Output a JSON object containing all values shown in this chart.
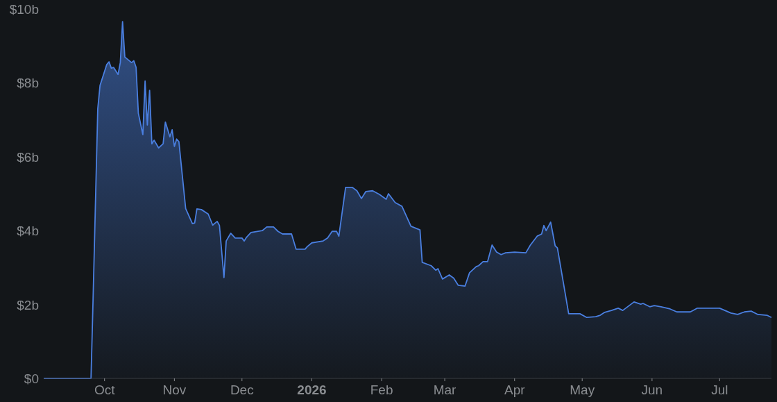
{
  "chart_data": {
    "type": "area",
    "x": [
      "2025-09-04",
      "2025-09-25",
      "2025-09-26",
      "2025-09-28",
      "2025-09-29",
      "2025-10-02",
      "2025-10-03",
      "2025-10-04",
      "2025-10-05",
      "2025-10-07",
      "2025-10-08",
      "2025-10-09",
      "2025-10-10",
      "2025-10-13",
      "2025-10-14",
      "2025-10-15",
      "2025-10-16",
      "2025-10-18",
      "2025-10-19",
      "2025-10-20",
      "2025-10-21",
      "2025-10-22",
      "2025-10-23",
      "2025-10-25",
      "2025-10-27",
      "2025-10-28",
      "2025-10-30",
      "2025-10-31",
      "2025-11-01",
      "2025-11-02",
      "2025-11-03",
      "2025-11-06",
      "2025-11-09",
      "2025-11-10",
      "2025-11-11",
      "2025-11-13",
      "2025-11-16",
      "2025-11-18",
      "2025-11-20",
      "2025-11-21",
      "2025-11-23",
      "2025-11-24",
      "2025-11-26",
      "2025-11-28",
      "2025-12-01",
      "2025-12-02",
      "2025-12-03",
      "2025-12-05",
      "2025-12-10",
      "2025-12-12",
      "2025-12-15",
      "2025-12-17",
      "2025-12-19",
      "2025-12-23",
      "2025-12-25",
      "2025-12-29",
      "2025-12-30",
      "2026-01-01",
      "2026-01-06",
      "2026-01-08",
      "2026-01-10",
      "2026-01-12",
      "2026-01-13",
      "2026-01-16",
      "2026-01-19",
      "2026-01-21",
      "2026-01-23",
      "2026-01-25",
      "2026-01-28",
      "2026-01-31",
      "2026-02-03",
      "2026-02-04",
      "2026-02-07",
      "2026-02-10",
      "2026-02-14",
      "2026-02-18",
      "2026-02-19",
      "2026-02-23",
      "2026-02-25",
      "2026-02-26",
      "2026-02-28",
      "2026-03-03",
      "2026-03-05",
      "2026-03-07",
      "2026-03-10",
      "2026-03-12",
      "2026-03-15",
      "2026-03-16",
      "2026-03-18",
      "2026-03-20",
      "2026-03-22",
      "2026-03-24",
      "2026-03-26",
      "2026-03-28",
      "2026-04-01",
      "2026-04-06",
      "2026-04-08",
      "2026-04-11",
      "2026-04-13",
      "2026-04-14",
      "2026-04-15",
      "2026-04-17",
      "2026-04-19",
      "2026-04-20",
      "2026-04-25",
      "2026-04-28",
      "2026-04-30",
      "2026-05-03",
      "2026-05-07",
      "2026-05-09",
      "2026-05-11",
      "2026-05-14",
      "2026-05-17",
      "2026-05-19",
      "2026-05-24",
      "2026-05-27",
      "2026-05-28",
      "2026-05-31",
      "2026-06-02",
      "2026-06-05",
      "2026-06-09",
      "2026-06-12",
      "2026-06-18",
      "2026-06-21",
      "2026-07-01",
      "2026-07-06",
      "2026-07-09",
      "2026-07-12",
      "2026-07-15",
      "2026-07-18",
      "2026-07-22",
      "2026-07-24"
    ],
    "series": [
      {
        "color": "#4a7fe0",
        "values": [
          0,
          0,
          2.35,
          7.3,
          7.93,
          8.5,
          8.57,
          8.4,
          8.42,
          8.23,
          8.55,
          9.66,
          8.7,
          8.55,
          8.6,
          8.42,
          7.18,
          6.6,
          8.05,
          6.86,
          7.8,
          6.35,
          6.45,
          6.24,
          6.35,
          6.94,
          6.54,
          6.73,
          6.28,
          6.48,
          6.41,
          4.6,
          4.19,
          4.21,
          4.59,
          4.57,
          4.45,
          4.15,
          4.25,
          4.14,
          2.73,
          3.72,
          3.93,
          3.8,
          3.8,
          3.72,
          3.82,
          3.95,
          4.0,
          4.1,
          4.1,
          3.98,
          3.91,
          3.91,
          3.5,
          3.5,
          3.57,
          3.67,
          3.72,
          3.8,
          3.98,
          3.98,
          3.85,
          5.17,
          5.17,
          5.08,
          4.87,
          5.06,
          5.08,
          4.98,
          4.85,
          5.0,
          4.76,
          4.66,
          4.12,
          4.02,
          3.14,
          3.05,
          2.93,
          2.97,
          2.69,
          2.8,
          2.71,
          2.52,
          2.5,
          2.86,
          3.03,
          3.05,
          3.16,
          3.16,
          3.61,
          3.42,
          3.35,
          3.4,
          3.42,
          3.4,
          3.61,
          3.85,
          3.91,
          4.14,
          4.0,
          4.23,
          3.59,
          3.53,
          1.75,
          1.75,
          1.75,
          1.65,
          1.67,
          1.71,
          1.79,
          1.84,
          1.9,
          1.84,
          2.07,
          2.01,
          2.03,
          1.94,
          1.97,
          1.94,
          1.88,
          1.8,
          1.8,
          1.9,
          1.9,
          1.77,
          1.73,
          1.8,
          1.82,
          1.73,
          1.71,
          1.65
        ]
      }
    ],
    "xlim": [
      "2025-09-04",
      "2026-07-24"
    ],
    "xticks": [
      {
        "value": "2025-10-01",
        "label": "Oct"
      },
      {
        "value": "2025-11-01",
        "label": "Nov"
      },
      {
        "value": "2025-12-01",
        "label": "Dec"
      },
      {
        "value": "2026-01-01",
        "label": "2026"
      },
      {
        "value": "2026-02-01",
        "label": "Feb"
      },
      {
        "value": "2026-03-01",
        "label": "Mar"
      },
      {
        "value": "2026-04-01",
        "label": "Apr"
      },
      {
        "value": "2026-05-01",
        "label": "May"
      },
      {
        "value": "2026-06-01",
        "label": "Jun"
      },
      {
        "value": "2026-07-01",
        "label": "Jul"
      }
    ],
    "ylim": [
      0,
      10
    ],
    "yticks": [
      {
        "value": 0,
        "label": "$0"
      },
      {
        "value": 2,
        "label": "$2b"
      },
      {
        "value": 4,
        "label": "$4b"
      },
      {
        "value": 6,
        "label": "$6b"
      },
      {
        "value": 8,
        "label": "$8b"
      },
      {
        "value": 10,
        "label": "$10b"
      }
    ],
    "grid": false
  }
}
